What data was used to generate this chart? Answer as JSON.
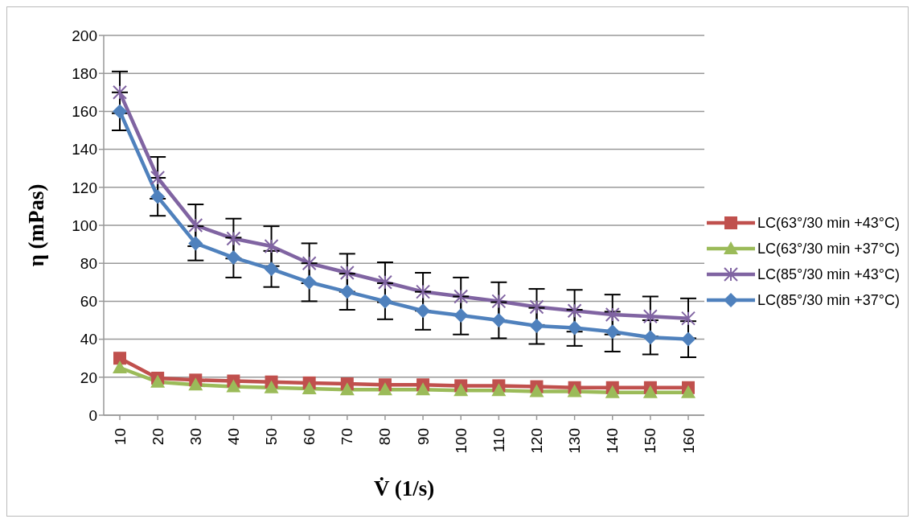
{
  "chart_data": {
    "type": "line",
    "xlabel": "V̇ (1/s)",
    "ylabel": "η (mPas)",
    "categories": [
      "10",
      "20",
      "30",
      "40",
      "50",
      "60",
      "70",
      "80",
      "90",
      "100",
      "110",
      "120",
      "130",
      "140",
      "150",
      "160"
    ],
    "ylim": [
      0,
      200
    ],
    "yticks": [
      0,
      20,
      40,
      60,
      80,
      100,
      120,
      140,
      160,
      180,
      200
    ],
    "grid": "y",
    "legend": "right",
    "series": [
      {
        "name": "LC(63°/30 min +43°C)",
        "color": "#c0504d",
        "marker": "square",
        "values": [
          30,
          19.5,
          18.5,
          18,
          17.5,
          17,
          16.5,
          16,
          16,
          15.5,
          15.5,
          15,
          14.5,
          14.5,
          14.5,
          14.5
        ]
      },
      {
        "name": "LC(63°/30 min +37°C)",
        "color": "#9bbb59",
        "marker": "triangle",
        "values": [
          25,
          17.5,
          16,
          15,
          14.5,
          14,
          13.5,
          13.5,
          13.5,
          13,
          13,
          12.5,
          12.5,
          12,
          12,
          12
        ]
      },
      {
        "name": "LC(85°/30 min +43°C)",
        "color": "#8064a2",
        "marker": "cross",
        "values": [
          170,
          125,
          100,
          93,
          89,
          80,
          75,
          70,
          65,
          62.5,
          60,
          57,
          55,
          53,
          52,
          51
        ],
        "errors": [
          11,
          11,
          11,
          10.5,
          10.5,
          10.5,
          10,
          10.5,
          10,
          10,
          10,
          9.5,
          11,
          10.5,
          10.5,
          10.5
        ]
      },
      {
        "name": "LC(85°/30 min +37°C)",
        "color": "#4f81bd",
        "marker": "diamond",
        "values": [
          160,
          115,
          90.5,
          83,
          77,
          70,
          65,
          60,
          55,
          52.5,
          50,
          47,
          46,
          44,
          41,
          40
        ],
        "errors": [
          10,
          10,
          9,
          10.5,
          9.5,
          10,
          9.5,
          9.5,
          10,
          10,
          9.5,
          9.5,
          9.5,
          10.5,
          9,
          9.5
        ]
      }
    ]
  }
}
